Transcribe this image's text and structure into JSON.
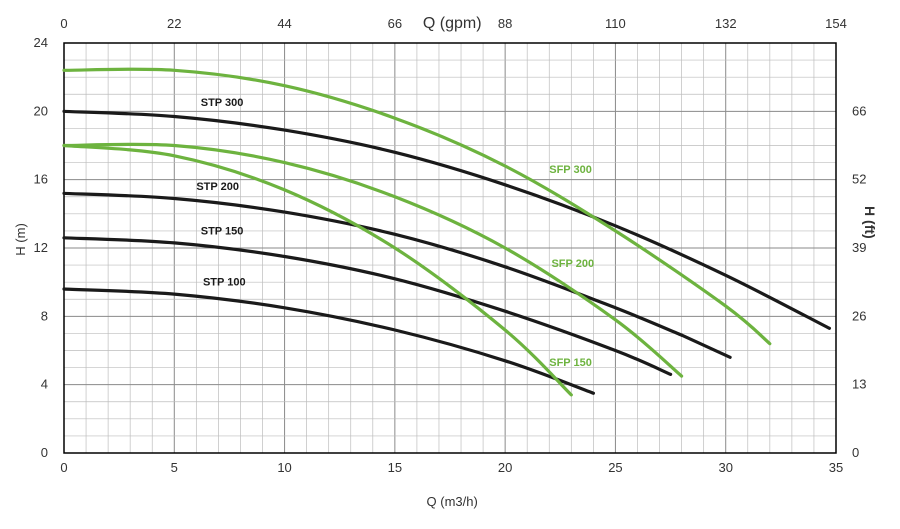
{
  "chart_data": {
    "type": "line",
    "title": "",
    "xlabel": "Q (m3/h)",
    "ylabel": "H (m)",
    "x2label": "Q (gpm)",
    "y2label": "H (ft)",
    "xlim": [
      0,
      35
    ],
    "ylim": [
      0,
      24
    ],
    "x_ticks": [
      0,
      5,
      10,
      15,
      20,
      25,
      30,
      35
    ],
    "y_ticks": [
      0,
      4,
      8,
      12,
      16,
      20,
      24
    ],
    "x2_tick_labels": [
      "0",
      "22",
      "44",
      "66",
      "88",
      "110",
      "132",
      "154"
    ],
    "y2_ticks": [
      {
        "at": 0,
        "label": "0"
      },
      {
        "at": 4,
        "label": "13"
      },
      {
        "at": 8,
        "label": "26"
      },
      {
        "at": 12,
        "label": "39"
      },
      {
        "at": 16,
        "label": "52"
      },
      {
        "at": 20,
        "label": "66"
      }
    ],
    "grid": true,
    "colors": {
      "stp": "#1a1a1a",
      "sfp": "#6db33f",
      "axis": "#000000",
      "grid_major": "#8a8a8a",
      "grid_minor": "#bdbdbd"
    },
    "series": [
      {
        "name": "STP 100",
        "group": "stp",
        "x": [
          0,
          5,
          10,
          15,
          20,
          24
        ],
        "y": [
          9.6,
          9.3,
          8.5,
          7.2,
          5.4,
          3.5
        ]
      },
      {
        "name": "STP 150",
        "group": "stp",
        "x": [
          0,
          5,
          10,
          15,
          20,
          25,
          27.5
        ],
        "y": [
          12.6,
          12.3,
          11.5,
          10.2,
          8.3,
          6.0,
          4.6
        ]
      },
      {
        "name": "STP 200",
        "group": "stp",
        "x": [
          0,
          5,
          10,
          15,
          20,
          25,
          28
        ],
        "y": [
          15.2,
          14.9,
          14.1,
          12.8,
          10.9,
          8.5,
          6.9
        ]
      },
      {
        "name": "STP 200",
        "group": "stp",
        "hidden_label": true,
        "x": [
          28,
          30.2
        ],
        "y": [
          6.9,
          5.6
        ]
      },
      {
        "name": "STP 300",
        "group": "stp",
        "x": [
          0,
          5,
          10,
          15,
          20,
          25,
          30,
          34.7
        ],
        "y": [
          20.0,
          19.7,
          18.9,
          17.6,
          15.7,
          13.3,
          10.4,
          7.3
        ]
      },
      {
        "name": "SFP 150",
        "group": "sfp",
        "x": [
          0,
          5,
          10,
          15,
          20,
          23
        ],
        "y": [
          18.0,
          17.4,
          15.4,
          12.0,
          7.2,
          3.4
        ]
      },
      {
        "name": "SFP 200",
        "group": "sfp",
        "x": [
          0,
          5,
          10,
          15,
          20,
          25,
          28
        ],
        "y": [
          18.0,
          18.0,
          17.0,
          15.0,
          12.0,
          7.8,
          4.5
        ]
      },
      {
        "name": "SFP 300",
        "group": "sfp",
        "x": [
          0,
          5,
          10,
          15,
          20,
          25,
          30,
          32
        ],
        "y": [
          22.4,
          22.4,
          21.5,
          19.6,
          16.8,
          13.0,
          8.6,
          6.4
        ]
      }
    ],
    "labels": [
      {
        "text": "STP 300",
        "x": 6.2,
        "y": 20.3,
        "group": "stp"
      },
      {
        "text": "STP 200",
        "x": 6.0,
        "y": 15.4,
        "group": "stp"
      },
      {
        "text": "STP 150",
        "x": 6.2,
        "y": 12.8,
        "group": "stp"
      },
      {
        "text": "STP 100",
        "x": 6.3,
        "y": 9.8,
        "group": "sfp_black"
      },
      {
        "text": "SFP 300",
        "x": 22.0,
        "y": 16.4,
        "group": "sfp"
      },
      {
        "text": "SFP 200",
        "x": 22.1,
        "y": 10.9,
        "group": "sfp"
      },
      {
        "text": "SFP 150",
        "x": 22.0,
        "y": 5.1,
        "group": "sfp"
      }
    ]
  }
}
